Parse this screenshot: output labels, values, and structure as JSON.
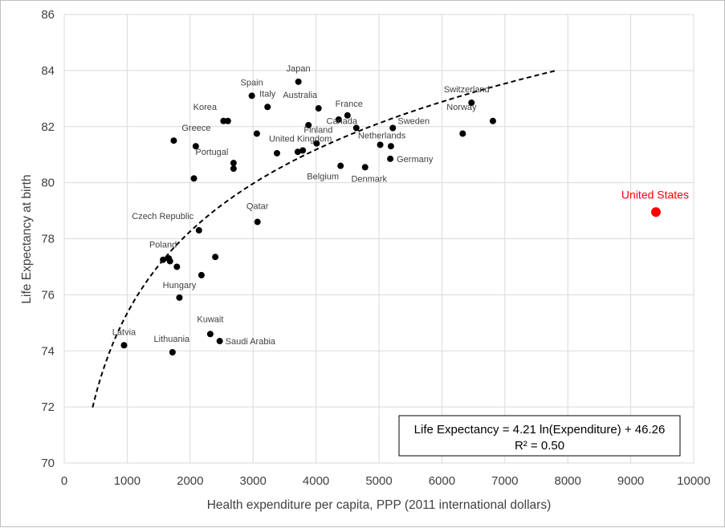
{
  "chart_data": {
    "type": "scatter",
    "xlabel": "Health expenditure per capita, PPP (2011 international dollars)",
    "ylabel": "Life Expectancy at birth",
    "xlim": [
      0,
      10000
    ],
    "ylim": [
      70,
      86
    ],
    "x_ticks": [
      0,
      1000,
      2000,
      3000,
      4000,
      5000,
      6000,
      7000,
      8000,
      9000,
      10000
    ],
    "y_ticks": [
      70,
      72,
      74,
      76,
      78,
      80,
      82,
      84,
      86
    ],
    "grid": "vertical and horizontal",
    "points": [
      {
        "label": "Japan",
        "x": 3720,
        "y": 83.6
      },
      {
        "label": "Spain",
        "x": 2980,
        "y": 83.1
      },
      {
        "label": "Italy",
        "x": 3230,
        "y": 82.7
      },
      {
        "label": "Australia",
        "x": 4040,
        "y": 82.65
      },
      {
        "label": "Switzerland",
        "x": 6470,
        "y": 82.85
      },
      {
        "label": "France",
        "x": 4500,
        "y": 82.4
      },
      {
        "label": "",
        "x": 4360,
        "y": 82.25
      },
      {
        "label": "Norway",
        "x": 6810,
        "y": 82.2
      },
      {
        "label": "Korea",
        "x": 2530,
        "y": 82.2
      },
      {
        "label": "",
        "x": 2600,
        "y": 82.2
      },
      {
        "label": "",
        "x": 3880,
        "y": 82.05
      },
      {
        "label": "Canada",
        "x": 4640,
        "y": 81.95
      },
      {
        "label": "Sweden",
        "x": 5220,
        "y": 81.95
      },
      {
        "label": "",
        "x": 6330,
        "y": 81.75
      },
      {
        "label": "",
        "x": 3060,
        "y": 81.75
      },
      {
        "label": "Greece",
        "x": 1740,
        "y": 81.5
      },
      {
        "label": "Finland",
        "x": 4010,
        "y": 81.4
      },
      {
        "label": "Netherlands",
        "x": 5020,
        "y": 81.35
      },
      {
        "label": "",
        "x": 5190,
        "y": 81.3
      },
      {
        "label": "",
        "x": 2090,
        "y": 81.3
      },
      {
        "label": "",
        "x": 3710,
        "y": 81.1
      },
      {
        "label": "United Kingdom",
        "x": 3790,
        "y": 81.15
      },
      {
        "label": "",
        "x": 3380,
        "y": 81.05
      },
      {
        "label": "Germany",
        "x": 5180,
        "y": 80.85
      },
      {
        "label": "Portugal",
        "x": 2690,
        "y": 80.7
      },
      {
        "label": "",
        "x": 2690,
        "y": 80.5
      },
      {
        "label": "Belgium",
        "x": 4390,
        "y": 80.6
      },
      {
        "label": "Denmark",
        "x": 4780,
        "y": 80.55
      },
      {
        "label": "",
        "x": 2060,
        "y": 80.15
      },
      {
        "label": "Qatar",
        "x": 3070,
        "y": 78.6
      },
      {
        "label": "Czech Republic",
        "x": 2140,
        "y": 78.3
      },
      {
        "label": "",
        "x": 2400,
        "y": 77.35
      },
      {
        "label": "Poland",
        "x": 1570,
        "y": 77.25
      },
      {
        "label": "",
        "x": 1660,
        "y": 77.3
      },
      {
        "label": "",
        "x": 1680,
        "y": 77.2
      },
      {
        "label": "",
        "x": 1790,
        "y": 77.0
      },
      {
        "label": "",
        "x": 2180,
        "y": 76.7
      },
      {
        "label": "Hungary",
        "x": 1830,
        "y": 75.9
      },
      {
        "label": "Kuwait",
        "x": 2320,
        "y": 74.6
      },
      {
        "label": "Saudi Arabia",
        "x": 2470,
        "y": 74.35
      },
      {
        "label": "Latvia",
        "x": 950,
        "y": 74.2
      },
      {
        "label": "Lithuania",
        "x": 1720,
        "y": 73.95
      }
    ],
    "highlight": {
      "label": "United States",
      "x": 9400,
      "y": 78.95,
      "color": "#ff0000"
    },
    "trendline": {
      "type": "logarithmic",
      "a": 4.21,
      "b": 46.26,
      "x_range": [
        450,
        7800
      ],
      "style": "dashed"
    },
    "equation_box": {
      "line1": "Life Expectancy = 4.21 ln(Expenditure) + 46.26",
      "line2": "R² = 0.50"
    }
  }
}
